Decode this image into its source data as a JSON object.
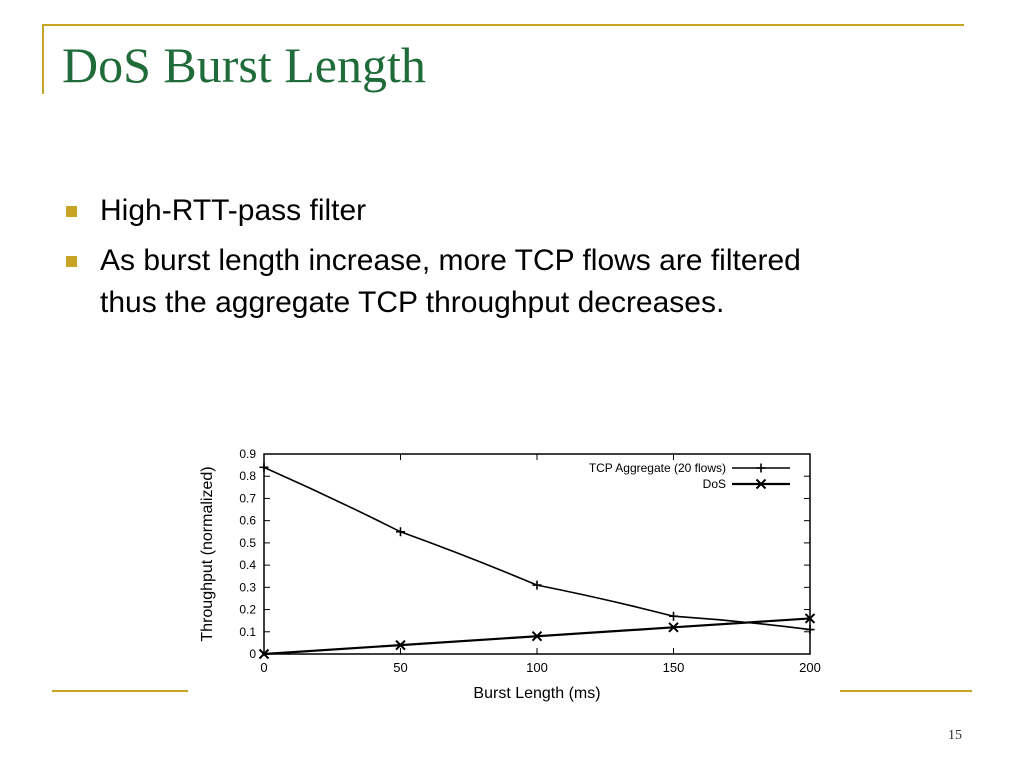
{
  "slide": {
    "title": "DoS Burst Length",
    "bullets": [
      "High-RTT-pass filter",
      "As burst length increase, more TCP flows are filtered thus the aggregate TCP throughput decreases."
    ],
    "page_number": "15",
    "accent_color": "#c8a426",
    "title_color": "#1f6b3a"
  },
  "chart_data": {
    "type": "line",
    "xlabel": "Burst Length (ms)",
    "ylabel": "Throughput (normalized)",
    "xlim": [
      0,
      200
    ],
    "ylim": [
      0,
      0.9
    ],
    "xticks": [
      0,
      50,
      100,
      150,
      200
    ],
    "yticks": [
      0,
      0.1,
      0.2,
      0.3,
      0.4,
      0.5,
      0.6,
      0.7,
      0.8,
      0.9
    ],
    "legend_position": "top-right",
    "grid": false,
    "series": [
      {
        "name": "TCP Aggregate (20 flows)",
        "marker": "plus",
        "x": [
          0,
          50,
          100,
          150,
          200
        ],
        "y": [
          0.84,
          0.55,
          0.31,
          0.17,
          0.11
        ]
      },
      {
        "name": "DoS",
        "marker": "x",
        "x": [
          0,
          50,
          100,
          150,
          200
        ],
        "y": [
          0.0,
          0.04,
          0.08,
          0.12,
          0.16
        ]
      }
    ]
  }
}
